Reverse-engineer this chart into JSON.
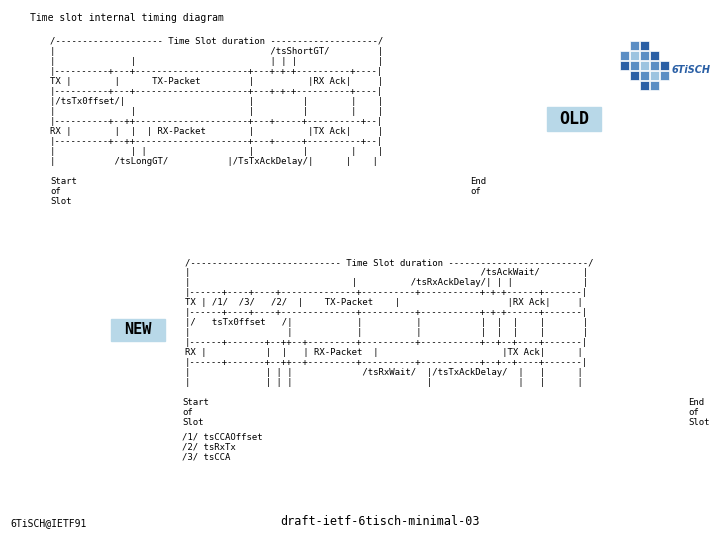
{
  "title": "Time slot internal timing diagram",
  "bg_color": "#ffffff",
  "font_family": "monospace",
  "font_size": 6.5,
  "footer_left": "6TiSCH@IETF91",
  "footer_center": "draft-ietf-6tisch-minimal-03",
  "old_label": "OLD",
  "new_label": "NEW",
  "old_box_color": "#b8d8e8",
  "new_box_color": "#b8d8e8",
  "old_lines": [
    "/-------------------- Time Slot duration --------------------/",
    "|                                        /tsShortGT/         |",
    "|              |                         | | |               |",
    "|----------+---+---------------------+---+-+-+----------+----|",
    "TX |        |      TX-Packet         |          |RX Ack|     |",
    "|----------+---+---------------------+---+-+-+----------+----|",
    "|/tsTx0ffset/|                       |         |        |    |",
    "|              |                     |         |        |    |",
    "|----------+--++---------------------+---+-----+----------+--|",
    "RX |        |  |  | RX-Packet        |          |TX Ack|     |",
    "|----------+--++---------------------+---+-----+----------+--|",
    "|              | |                   |         |        |    |",
    "|           /tsLongGT/           |/TsTxAckDelay/|      |    |"
  ],
  "new_lines": [
    "/---------------------------- Time Slot duration --------------------------/",
    "|                                                      /tsAckWait/        |",
    "|                              |          /tsRxAckDelay/| | |             |",
    "|------+----+----+--------------+----------+-----------+-+-+------+-------|",
    "TX | /1/  /3/   /2/  |    TX-Packet    |                    |RX Ack|     |",
    "|------+----+----+--------------+----------+-----------+-+-+------+-------|",
    "|/   tsTx0ffset   /|            |          |           |  |  |    |       |",
    "|                  |            |          |           |  |  |    |       |",
    "|------+-------+--++--+---------+----------+-----------+--+--+----+-------|",
    "RX |           |  |   | RX-Packet  |                       |TX Ack|      |",
    "|------+-------+--++--+---------+----------+-----------+--+--+----+-------|",
    "|              | | |             /tsRxWait/  |/tsTxAckDelay/  |   |      |",
    "|              | | |                         |                |   |      |"
  ],
  "footnotes": [
    "/1/ tsCCAOffset",
    "/2/ tsRxTx",
    "/3/ tsCCA"
  ],
  "old_start_label": "Start\nof\nSlot",
  "old_end_label": "End\nof",
  "new_start_label": "Start\nof\nSlot",
  "new_end_label": "End\nof\nSlot"
}
